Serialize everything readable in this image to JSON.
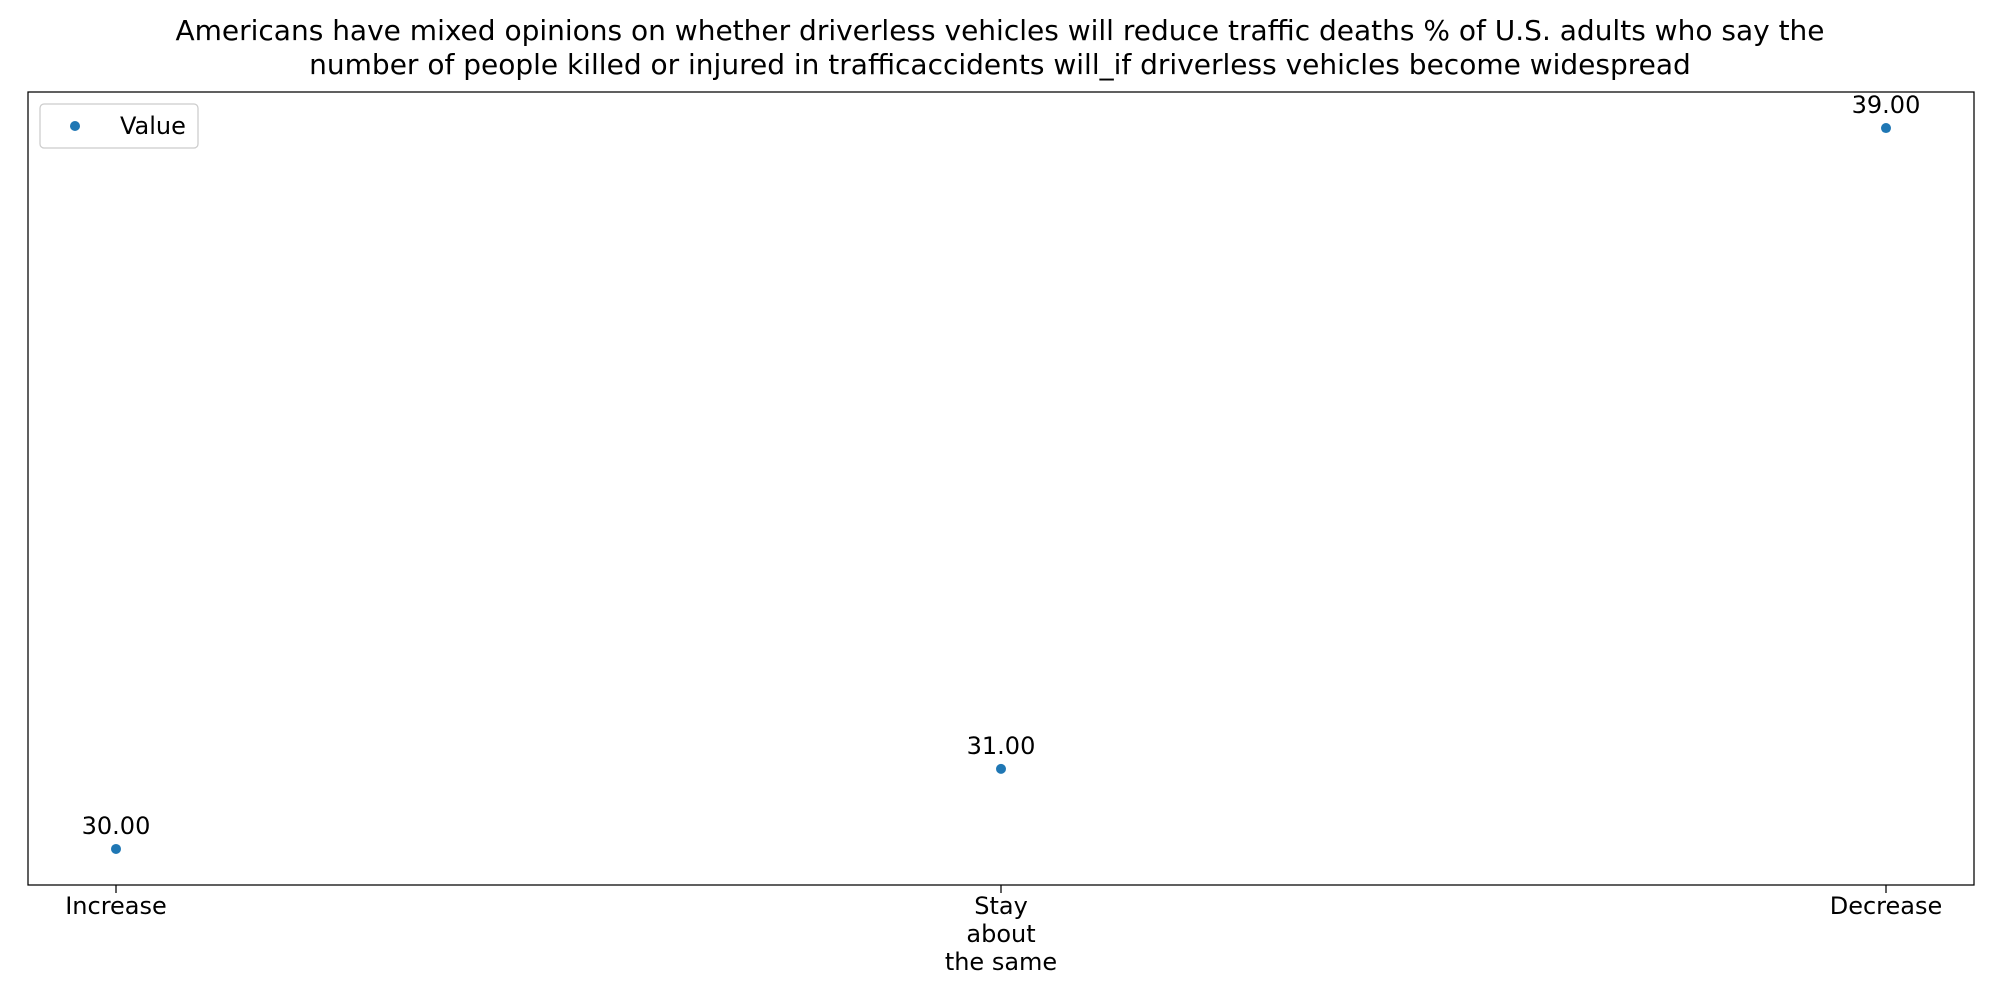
{
  "chart_data": {
    "type": "scatter",
    "title_lines": [
      "Americans have mixed opinions on whether driverless vehicles will reduce traffic deaths % of U.S. adults who say the",
      "number of people killed or injured in trafficaccidents will_if driverless vehicles become widespread"
    ],
    "categories": [
      [
        "Increase"
      ],
      [
        "Stay",
        "about",
        "the same"
      ],
      [
        "Decrease"
      ]
    ],
    "series": [
      {
        "name": "Value",
        "values": [
          30,
          31,
          39
        ],
        "labels": [
          "30.00",
          "31.00",
          "39.00"
        ],
        "color": "#1f77b4"
      }
    ],
    "ylim": [
      29.55,
      39.45
    ],
    "legend": {
      "position": "top-left",
      "label": "Value"
    },
    "grid": false
  }
}
